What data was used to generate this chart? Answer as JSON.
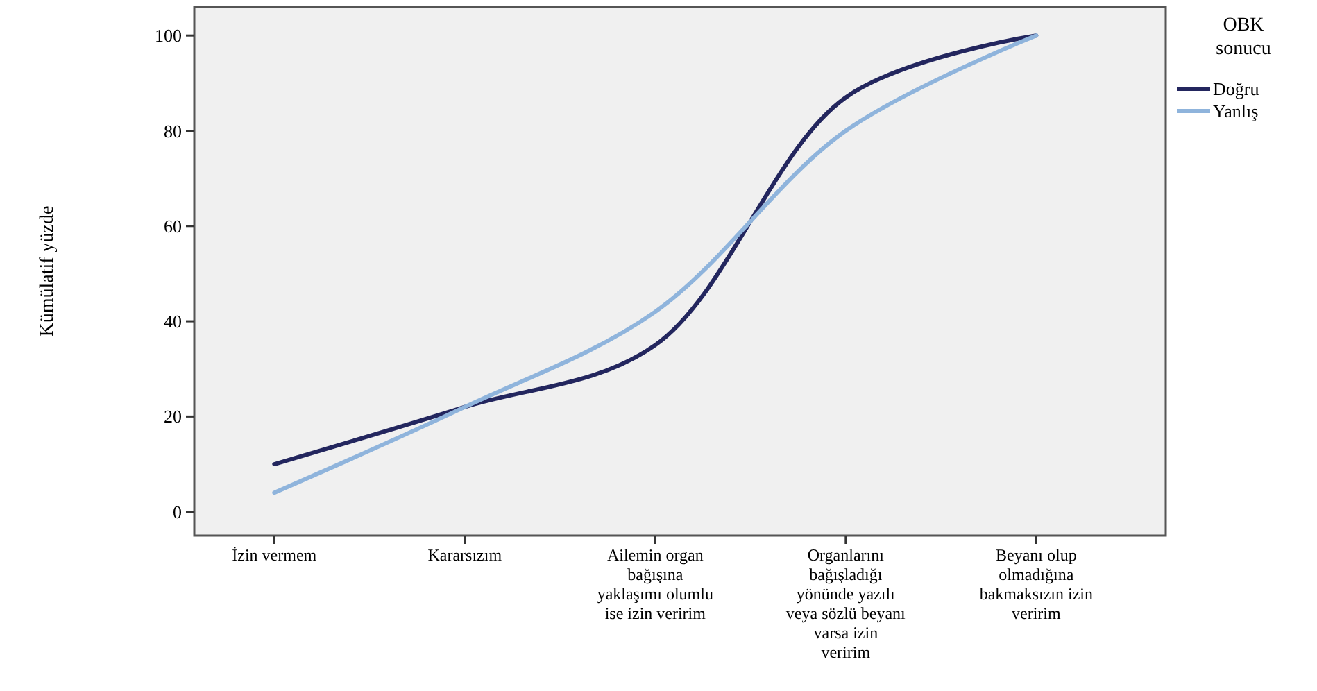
{
  "chart_data": {
    "type": "line",
    "ylabel": "Kümülatif yüzde",
    "legend_title": "OBK sonucu",
    "legend": "right",
    "grid": false,
    "marker": "none",
    "line_style": "solid",
    "categories": [
      "İzin vermem",
      "Kararsızım",
      "Ailemin organ bağışına yaklaşımı olumlu ise izin veririm",
      "Organlarını bağışladığı yönünde yazılı veya sözlü beyanı varsa izin veririm",
      "Beyanı olup olmadığına bakmaksızın izin veririm"
    ],
    "ylim": [
      -5,
      106
    ],
    "yticks": [
      0,
      20,
      40,
      60,
      80,
      100
    ],
    "series": [
      {
        "name": "Doğru",
        "color": "#23265e",
        "values": [
          10,
          22,
          35,
          87,
          100
        ]
      },
      {
        "name": "Yanlış",
        "color": "#8fb4dc",
        "values": [
          4,
          22,
          42,
          80,
          100
        ]
      }
    ]
  }
}
